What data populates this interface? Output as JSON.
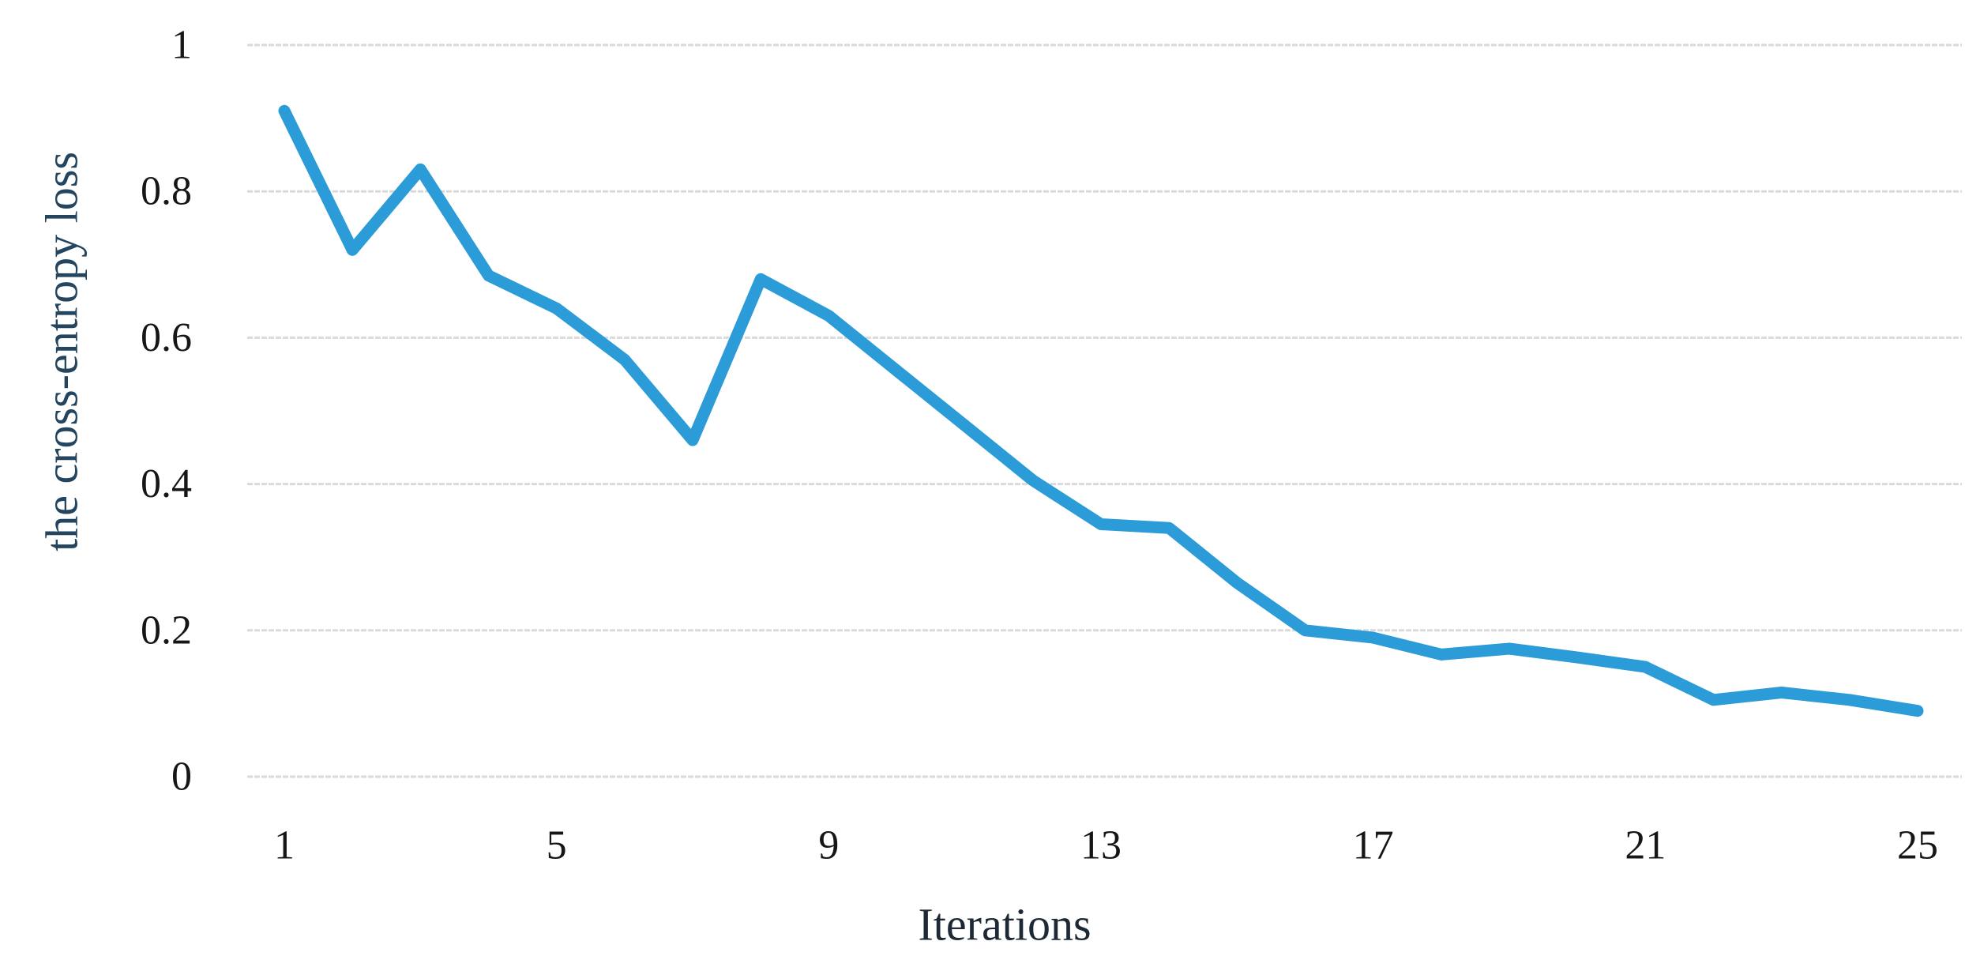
{
  "chart_data": {
    "type": "line",
    "title": "",
    "xlabel": "Iterations",
    "ylabel": "the cross-entropy loss",
    "x": [
      1,
      2,
      3,
      4,
      5,
      6,
      7,
      8,
      9,
      10,
      11,
      12,
      13,
      14,
      15,
      16,
      17,
      18,
      19,
      20,
      21,
      22,
      23,
      24,
      25
    ],
    "values": [
      0.91,
      0.72,
      0.83,
      0.685,
      0.64,
      0.57,
      0.46,
      0.68,
      0.63,
      0.555,
      0.48,
      0.405,
      0.345,
      0.34,
      0.265,
      0.2,
      0.19,
      0.167,
      0.175,
      0.163,
      0.15,
      0.105,
      0.115,
      0.105,
      0.09
    ],
    "x_ticks": [
      "1",
      "5",
      "9",
      "13",
      "17",
      "21",
      "25"
    ],
    "x_tick_values": [
      1,
      5,
      9,
      13,
      17,
      21,
      25
    ],
    "y_ticks": [
      "1",
      "0.8",
      "0.6",
      "0.4",
      "0.2",
      "0"
    ],
    "y_tick_values": [
      1,
      0.8,
      0.6,
      0.4,
      0.2,
      0
    ],
    "xlim": [
      1,
      25
    ],
    "ylim": [
      0,
      1
    ],
    "grid": "horizontal-only",
    "legend": "none",
    "line_color": "#2b9cd8",
    "gridline_color": "#dadada",
    "tick_color": "#161616"
  }
}
